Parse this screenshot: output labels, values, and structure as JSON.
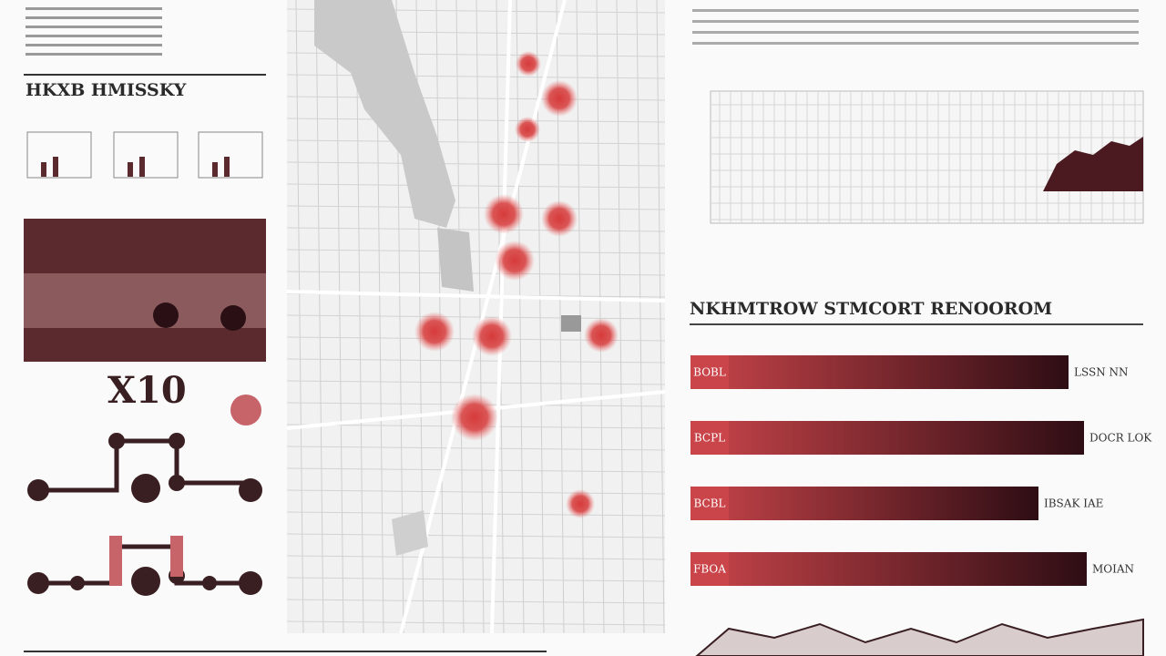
{
  "left_panel": {
    "title": "HKXB HMISSKY",
    "big_label": "X10"
  },
  "right_panel": {
    "section_title": "NKHMTROW STMCORT RENOOROM",
    "bars": [
      {
        "label": "BOBL",
        "value_label": "LSSN NN"
      },
      {
        "label": "BCPL",
        "value_label": "DOCR LOK"
      },
      {
        "label": "BCBL",
        "value_label": "IBSAK IAE"
      },
      {
        "label": "FBOA",
        "value_label": "MOIAN"
      }
    ]
  }
}
